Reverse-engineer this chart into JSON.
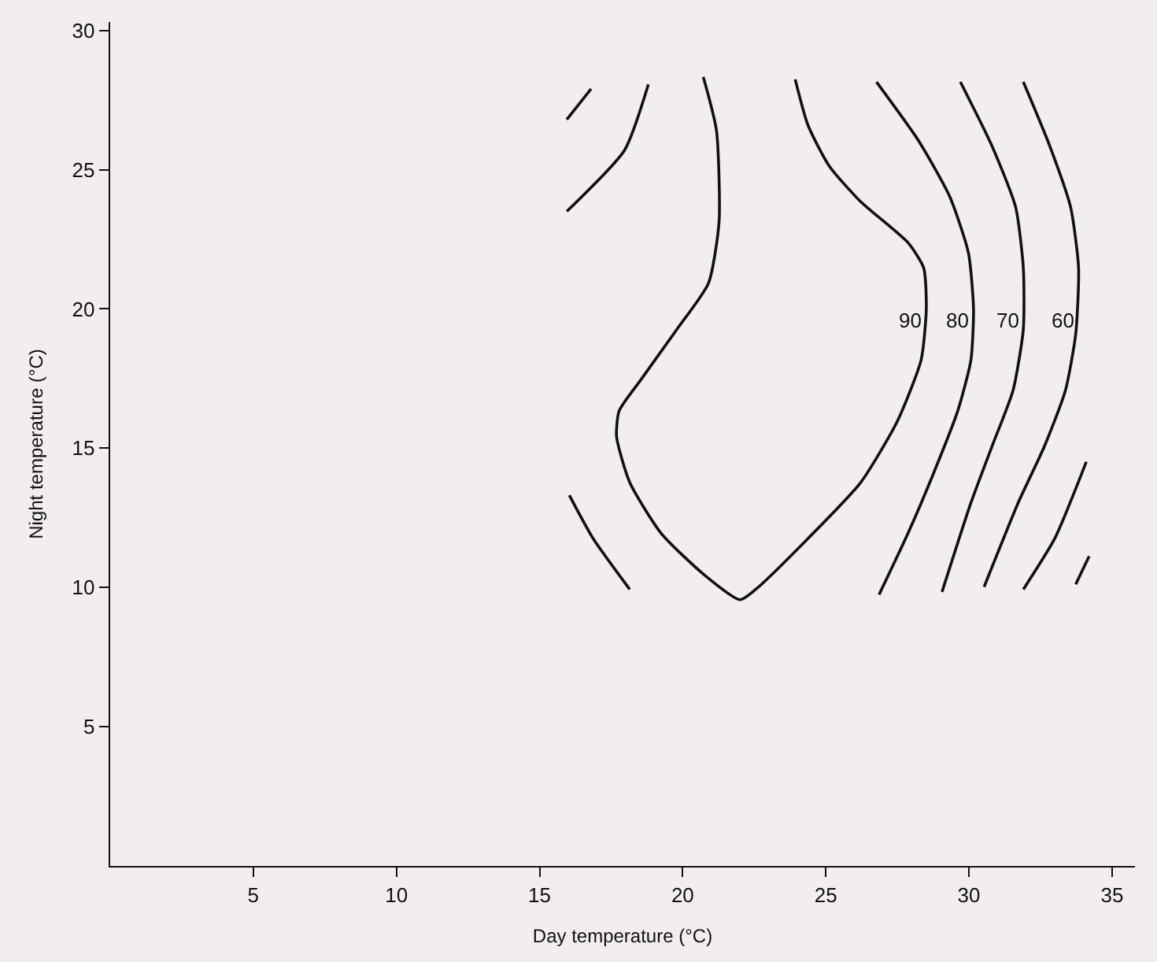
{
  "chart_data": {
    "type": "line",
    "xlabel": "Day temperature (°C)",
    "ylabel": "Night temperature (°C)",
    "xlim": [
      0,
      35.8
    ],
    "ylim": [
      0,
      30.3
    ],
    "xticks": [
      5,
      10,
      15,
      20,
      25,
      30,
      35
    ],
    "yticks": [
      5,
      10,
      15,
      20,
      25,
      30
    ],
    "marker": "none",
    "line_style": "solid",
    "series": [
      {
        "color": "#111111",
        "x": [
          16.8,
          15.95
        ],
        "values": [
          27.9,
          26.8
        ]
      },
      {
        "color": "#111111",
        "x": [
          18.8,
          17.97,
          15.95
        ],
        "values": [
          28.06,
          25.7,
          23.5
        ]
      },
      {
        "color": "#111111",
        "x": [
          20.72,
          21.18,
          21.27,
          20.9,
          19.8,
          18.52,
          17.78,
          17.69,
          18.15,
          19.25,
          20.72,
          22.0,
          22.55,
          24.38,
          26.22,
          27.5,
          28.33,
          28.51,
          28.42,
          27.87,
          26.22,
          25.12,
          24.38,
          23.93
        ],
        "values": [
          28.33,
          26.41,
          23.11,
          20.92,
          19.27,
          17.43,
          16.34,
          15.42,
          13.77,
          11.94,
          10.48,
          9.56,
          9.93,
          11.76,
          13.77,
          15.97,
          18.17,
          20.0,
          21.47,
          22.38,
          23.85,
          25.13,
          26.59,
          28.24
        ]
      },
      {
        "color": "#111111",
        "x": [
          16.04,
          16.87,
          18.15
        ],
        "values": [
          13.31,
          11.76,
          9.93
        ]
      },
      {
        "color": "#111111",
        "x": [
          26.77,
          28.24,
          29.33,
          29.98,
          30.16,
          30.07,
          29.61,
          28.78,
          27.87,
          26.86
        ],
        "values": [
          28.15,
          26.04,
          24.03,
          22.02,
          20.0,
          18.17,
          16.34,
          14.14,
          11.94,
          9.74
        ]
      },
      {
        "color": "#111111",
        "x": [
          29.7,
          30.8,
          31.63,
          31.9,
          31.9,
          31.54,
          30.8,
          30.07,
          29.06
        ],
        "values": [
          28.15,
          25.86,
          23.66,
          21.47,
          19.27,
          17.07,
          15.05,
          13.04,
          9.84
        ]
      },
      {
        "color": "#111111",
        "x": [
          31.9,
          32.82,
          33.55,
          33.83,
          33.73,
          33.37,
          32.63,
          31.72,
          30.53
        ],
        "values": [
          28.15,
          25.86,
          23.66,
          21.47,
          19.1,
          17.07,
          15.05,
          13.04,
          10.02
        ]
      },
      {
        "color": "#111111",
        "x": [
          31.9,
          33.0,
          34.1
        ],
        "values": [
          9.93,
          11.76,
          14.51
        ]
      },
      {
        "color": "#111111",
        "x": [
          33.73,
          34.2
        ],
        "values": [
          10.11,
          11.12
        ]
      }
    ],
    "annotations": [
      {
        "text": "90",
        "x": 28.45,
        "y": 19.56
      },
      {
        "text": "80",
        "x": 30.1,
        "y": 19.56
      },
      {
        "text": "70",
        "x": 31.85,
        "y": 19.56
      },
      {
        "text": "60",
        "x": 33.75,
        "y": 19.56
      }
    ]
  }
}
